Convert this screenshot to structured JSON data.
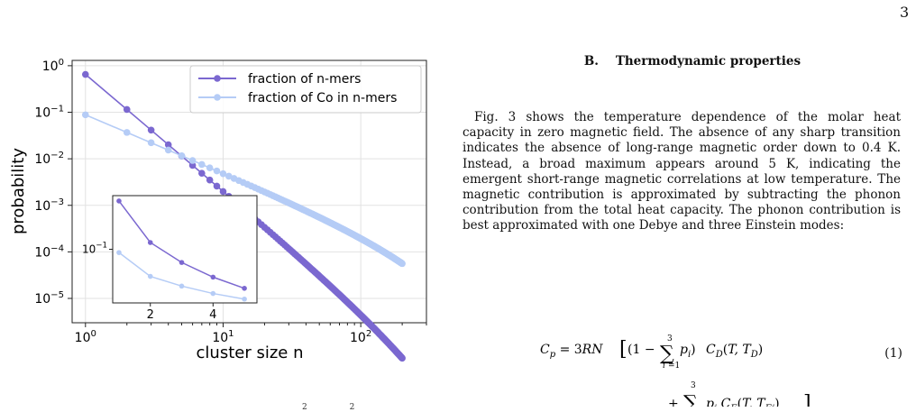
{
  "page": {
    "number": "3"
  },
  "section": {
    "label": "B.",
    "title": "Thermodynamic properties"
  },
  "paragraph": "Fig. 3 shows the temperature dependence of the molar heat capacity in zero magnetic field. The absence of any sharp transition indicates the absence of long-range magnetic order down to 0.4 K. Instead, a broad maximum appears around 5 K, indicating the emergent short-range magnetic correlations at low temperature. The magnetic contribution is approximated by subtracting the phonon contribution from the total heat capacity. The phonon contribution is best approximated with one Debye and three Einstein modes:",
  "equation": {
    "number": "(1)"
  },
  "footer_fragment": "2 2",
  "chart_data": {
    "type": "scatter",
    "xlabel": "cluster size n",
    "ylabel": "probability",
    "xscale": "log",
    "yscale": "log",
    "xlim": [
      0.8,
      300
    ],
    "ylim": [
      3e-06,
      1.3
    ],
    "xticks": [
      "10^0",
      "10^1",
      "10^2"
    ],
    "yticks": [
      "10^0",
      "10^-1",
      "10^-2",
      "10^-3",
      "10^-4",
      "10^-5"
    ],
    "grid": true,
    "legend_position": "top-right",
    "series": [
      {
        "name": "fraction of n-mers",
        "color": "#7b68d0",
        "p0": 0.65,
        "decay_exponent": 2.5,
        "cutoff": 250,
        "n_range": [
          1,
          200
        ]
      },
      {
        "name": "fraction of Co in n-mers",
        "color": "#b5ccf6",
        "p0": 0.088,
        "decay_exponent": 1.25,
        "cutoff": 270,
        "n_range": [
          1,
          200
        ]
      }
    ],
    "inset": {
      "type": "line",
      "xticks": [
        "2",
        "4"
      ],
      "ytick": "10^-1",
      "xlim": [
        0.8,
        5.4
      ],
      "series": [
        {
          "name": "fraction of n-mers",
          "x": [
            1,
            2,
            3,
            4,
            5
          ],
          "y": [
            0.65,
            0.13,
            0.06,
            0.034,
            0.022
          ]
        },
        {
          "name": "fraction of Co in n-mers",
          "x": [
            1,
            2,
            3,
            4,
            5
          ],
          "y": [
            0.088,
            0.035,
            0.024,
            0.018,
            0.0145
          ]
        }
      ]
    }
  }
}
